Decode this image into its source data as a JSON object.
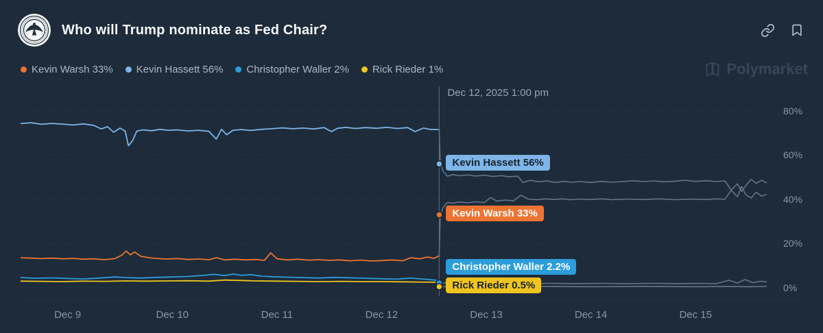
{
  "header": {
    "title": "Who will Trump nominate as Fed Chair?"
  },
  "icons": {
    "link": "copy-link",
    "bookmark": "bookmark",
    "logo": "federal-reserve-seal",
    "watermark_logo": "polymarket-mark"
  },
  "watermark": {
    "text": "Polymarket"
  },
  "chart_data": {
    "type": "line",
    "title": "Who will Trump nominate as Fed Chair?",
    "x_domain": [
      8.55,
      15.68
    ],
    "y_domain": [
      -3.1,
      89.2
    ],
    "grid": true,
    "legend_position": "top-left",
    "after_color": "#64768A",
    "x_ticks": [
      {
        "v": 9,
        "label": "Dec 9"
      },
      {
        "v": 10,
        "label": "Dec 10"
      },
      {
        "v": 11,
        "label": "Dec 11"
      },
      {
        "v": 12,
        "label": "Dec 12"
      },
      {
        "v": 13,
        "label": "Dec 13"
      },
      {
        "v": 14,
        "label": "Dec 14"
      },
      {
        "v": 15,
        "label": "Dec 15"
      }
    ],
    "y_ticks": [
      {
        "v": 0,
        "label": "0%"
      },
      {
        "v": 20,
        "label": "20%"
      },
      {
        "v": 40,
        "label": "40%"
      },
      {
        "v": 60,
        "label": "60%"
      },
      {
        "v": 80,
        "label": "80%"
      }
    ],
    "hover": {
      "x": 12.55,
      "label": "Dec 12, 2025 1:00 pm"
    },
    "series": [
      {
        "name": "Kevin Warsh",
        "legend_label": "Kevin Warsh 33%",
        "hover_label": "Kevin Warsh 33%",
        "hover_value": 33,
        "color": "#ED7332",
        "badge_bg": "#ED7332",
        "badge_text": "#FFFFFF",
        "before": [
          [
            8.55,
            13.6
          ],
          [
            8.65,
            13.4
          ],
          [
            8.75,
            13.2
          ],
          [
            8.85,
            13.4
          ],
          [
            8.95,
            13.1
          ],
          [
            9.05,
            13.3
          ],
          [
            9.15,
            12.9
          ],
          [
            9.25,
            13.1
          ],
          [
            9.35,
            12.7
          ],
          [
            9.45,
            13.2
          ],
          [
            9.52,
            14.8
          ],
          [
            9.56,
            16.6
          ],
          [
            9.6,
            14.9
          ],
          [
            9.64,
            16.2
          ],
          [
            9.7,
            14.2
          ],
          [
            9.78,
            13.6
          ],
          [
            9.86,
            13.2
          ],
          [
            9.95,
            13.0
          ],
          [
            10.05,
            13.2
          ],
          [
            10.15,
            12.8
          ],
          [
            10.25,
            13.0
          ],
          [
            10.35,
            12.7
          ],
          [
            10.42,
            13.6
          ],
          [
            10.5,
            12.6
          ],
          [
            10.6,
            12.9
          ],
          [
            10.7,
            12.6
          ],
          [
            10.8,
            12.8
          ],
          [
            10.88,
            12.4
          ],
          [
            10.94,
            15.8
          ],
          [
            11.0,
            13.1
          ],
          [
            11.1,
            12.6
          ],
          [
            11.2,
            12.9
          ],
          [
            11.3,
            12.5
          ],
          [
            11.4,
            12.7
          ],
          [
            11.5,
            12.4
          ],
          [
            11.6,
            12.6
          ],
          [
            11.7,
            12.2
          ],
          [
            11.8,
            12.5
          ],
          [
            11.9,
            12.1
          ],
          [
            12.0,
            12.3
          ],
          [
            12.1,
            12.6
          ],
          [
            12.2,
            12.2
          ],
          [
            12.28,
            13.6
          ],
          [
            12.36,
            13.1
          ],
          [
            12.44,
            13.9
          ],
          [
            12.5,
            13.3
          ],
          [
            12.55,
            14.5
          ]
        ],
        "after": [
          [
            12.55,
            14.5
          ],
          [
            12.56,
            33.0
          ],
          [
            12.59,
            36.5
          ],
          [
            12.63,
            38.6
          ],
          [
            12.68,
            38.2
          ],
          [
            12.74,
            38.8
          ],
          [
            12.82,
            38.4
          ],
          [
            12.9,
            38.9
          ],
          [
            12.98,
            38.5
          ],
          [
            13.04,
            40.8
          ],
          [
            13.1,
            39.2
          ],
          [
            13.18,
            39.6
          ],
          [
            13.26,
            39.3
          ],
          [
            13.33,
            41.8
          ],
          [
            13.4,
            40.1
          ],
          [
            13.48,
            39.8
          ],
          [
            13.56,
            40.2
          ],
          [
            13.64,
            39.9
          ],
          [
            13.72,
            40.2
          ],
          [
            13.8,
            39.8
          ],
          [
            13.9,
            40.1
          ],
          [
            14.0,
            39.9
          ],
          [
            14.1,
            40.2
          ],
          [
            14.2,
            39.8
          ],
          [
            14.35,
            40.1
          ],
          [
            14.5,
            39.9
          ],
          [
            14.65,
            40.2
          ],
          [
            14.8,
            39.8
          ],
          [
            14.95,
            40.1
          ],
          [
            15.1,
            39.9
          ],
          [
            15.2,
            40.2
          ],
          [
            15.28,
            40.0
          ],
          [
            15.34,
            44.0
          ],
          [
            15.4,
            41.2
          ],
          [
            15.44,
            45.8
          ],
          [
            15.48,
            42.0
          ],
          [
            15.53,
            40.6
          ],
          [
            15.58,
            43.2
          ],
          [
            15.63,
            41.4
          ],
          [
            15.68,
            42.2
          ]
        ]
      },
      {
        "name": "Kevin Hassett",
        "legend_label": "Kevin Hassett 56%",
        "hover_label": "Kevin Hassett 56%",
        "hover_value": 56,
        "color": "#7FB5E8",
        "badge_bg": "#7FB5E8",
        "badge_text": "#17242F",
        "before": [
          [
            8.55,
            74.2
          ],
          [
            8.65,
            74.6
          ],
          [
            8.75,
            73.9
          ],
          [
            8.85,
            74.3
          ],
          [
            8.95,
            74.0
          ],
          [
            9.05,
            73.6
          ],
          [
            9.15,
            74.1
          ],
          [
            9.25,
            73.4
          ],
          [
            9.32,
            71.8
          ],
          [
            9.38,
            72.8
          ],
          [
            9.44,
            70.3
          ],
          [
            9.5,
            72.2
          ],
          [
            9.55,
            70.8
          ],
          [
            9.58,
            64.2
          ],
          [
            9.62,
            66.5
          ],
          [
            9.66,
            70.8
          ],
          [
            9.72,
            71.4
          ],
          [
            9.8,
            71.0
          ],
          [
            9.88,
            71.6
          ],
          [
            9.96,
            71.2
          ],
          [
            10.05,
            71.4
          ],
          [
            10.15,
            70.9
          ],
          [
            10.25,
            71.2
          ],
          [
            10.35,
            70.7
          ],
          [
            10.42,
            67.2
          ],
          [
            10.47,
            71.6
          ],
          [
            10.52,
            69.2
          ],
          [
            10.58,
            71.2
          ],
          [
            10.66,
            71.5
          ],
          [
            10.75,
            71.1
          ],
          [
            10.85,
            71.6
          ],
          [
            10.95,
            71.9
          ],
          [
            11.05,
            72.3
          ],
          [
            11.15,
            71.9
          ],
          [
            11.25,
            72.2
          ],
          [
            11.35,
            71.8
          ],
          [
            11.45,
            72.4
          ],
          [
            11.52,
            70.6
          ],
          [
            11.58,
            72.1
          ],
          [
            11.66,
            72.5
          ],
          [
            11.75,
            72.0
          ],
          [
            11.85,
            72.4
          ],
          [
            11.95,
            72.1
          ],
          [
            12.05,
            72.5
          ],
          [
            12.15,
            72.0
          ],
          [
            12.25,
            72.4
          ],
          [
            12.32,
            70.6
          ],
          [
            12.4,
            72.2
          ],
          [
            12.46,
            71.6
          ],
          [
            12.55,
            71.5
          ]
        ],
        "after": [
          [
            12.55,
            71.5
          ],
          [
            12.56,
            56.0
          ],
          [
            12.59,
            52.5
          ],
          [
            12.63,
            50.4
          ],
          [
            12.68,
            51.2
          ],
          [
            12.74,
            50.6
          ],
          [
            12.82,
            51.0
          ],
          [
            12.9,
            50.5
          ],
          [
            12.98,
            50.9
          ],
          [
            13.06,
            50.3
          ],
          [
            13.14,
            50.7
          ],
          [
            13.22,
            50.2
          ],
          [
            13.3,
            50.5
          ],
          [
            13.35,
            47.6
          ],
          [
            13.42,
            48.6
          ],
          [
            13.5,
            47.9
          ],
          [
            13.58,
            48.3
          ],
          [
            13.66,
            47.6
          ],
          [
            13.74,
            48.1
          ],
          [
            13.82,
            47.7
          ],
          [
            13.9,
            48.0
          ],
          [
            14.0,
            47.6
          ],
          [
            14.1,
            48.1
          ],
          [
            14.2,
            47.7
          ],
          [
            14.3,
            48.0
          ],
          [
            14.4,
            48.4
          ],
          [
            14.5,
            48.0
          ],
          [
            14.6,
            48.3
          ],
          [
            14.7,
            47.9
          ],
          [
            14.8,
            48.2
          ],
          [
            14.9,
            48.6
          ],
          [
            15.0,
            48.1
          ],
          [
            15.1,
            48.4
          ],
          [
            15.2,
            48.0
          ],
          [
            15.28,
            48.3
          ],
          [
            15.34,
            44.2
          ],
          [
            15.4,
            47.0
          ],
          [
            15.44,
            43.6
          ],
          [
            15.48,
            46.2
          ],
          [
            15.53,
            49.0
          ],
          [
            15.58,
            47.2
          ],
          [
            15.63,
            48.6
          ],
          [
            15.68,
            47.4
          ]
        ]
      },
      {
        "name": "Christopher Waller",
        "legend_label": "Christopher Waller 2%",
        "hover_label": "Christopher Waller 2.2%",
        "hover_value": 2.2,
        "color": "#2D9CDB",
        "badge_bg": "#2D9CDB",
        "badge_text": "#FFFFFF",
        "before": [
          [
            8.55,
            4.6
          ],
          [
            8.7,
            4.3
          ],
          [
            8.85,
            4.5
          ],
          [
            9.0,
            4.2
          ],
          [
            9.15,
            4.0
          ],
          [
            9.3,
            4.4
          ],
          [
            9.45,
            4.9
          ],
          [
            9.55,
            4.6
          ],
          [
            9.7,
            4.4
          ],
          [
            9.85,
            4.7
          ],
          [
            10.0,
            4.9
          ],
          [
            10.15,
            5.1
          ],
          [
            10.3,
            5.6
          ],
          [
            10.4,
            6.1
          ],
          [
            10.5,
            5.5
          ],
          [
            10.58,
            6.2
          ],
          [
            10.66,
            5.6
          ],
          [
            10.75,
            5.9
          ],
          [
            10.85,
            5.3
          ],
          [
            10.95,
            5.0
          ],
          [
            11.1,
            4.8
          ],
          [
            11.25,
            4.6
          ],
          [
            11.4,
            4.4
          ],
          [
            11.55,
            4.7
          ],
          [
            11.7,
            4.5
          ],
          [
            11.85,
            4.3
          ],
          [
            12.0,
            4.1
          ],
          [
            12.15,
            3.9
          ],
          [
            12.28,
            4.4
          ],
          [
            12.4,
            3.9
          ],
          [
            12.5,
            3.5
          ],
          [
            12.55,
            3.2
          ]
        ],
        "after": [
          [
            12.55,
            3.2
          ],
          [
            12.56,
            2.2
          ],
          [
            12.7,
            2.1
          ],
          [
            12.9,
            2.0
          ],
          [
            13.1,
            2.1
          ],
          [
            13.35,
            1.9
          ],
          [
            13.6,
            2.0
          ],
          [
            13.85,
            1.9
          ],
          [
            14.1,
            2.0
          ],
          [
            14.35,
            1.9
          ],
          [
            14.6,
            2.0
          ],
          [
            14.85,
            1.9
          ],
          [
            15.05,
            2.0
          ],
          [
            15.2,
            1.9
          ],
          [
            15.32,
            3.4
          ],
          [
            15.4,
            2.1
          ],
          [
            15.47,
            3.7
          ],
          [
            15.55,
            2.3
          ],
          [
            15.62,
            3.0
          ],
          [
            15.68,
            2.6
          ]
        ]
      },
      {
        "name": "Rick Rieder",
        "legend_label": "Rick Rieder 1%",
        "hover_label": "Rick Rieder 0.5%",
        "hover_value": 0.5,
        "color": "#F0C420",
        "badge_bg": "#F0C420",
        "badge_text": "#17242F",
        "before": [
          [
            8.55,
            3.0
          ],
          [
            8.75,
            2.9
          ],
          [
            8.95,
            2.8
          ],
          [
            9.15,
            3.0
          ],
          [
            9.35,
            2.9
          ],
          [
            9.55,
            3.1
          ],
          [
            9.75,
            3.0
          ],
          [
            9.95,
            3.1
          ],
          [
            10.15,
            3.2
          ],
          [
            10.35,
            3.0
          ],
          [
            10.5,
            3.5
          ],
          [
            10.65,
            3.3
          ],
          [
            10.8,
            3.1
          ],
          [
            11.0,
            3.0
          ],
          [
            11.2,
            2.9
          ],
          [
            11.4,
            2.8
          ],
          [
            11.6,
            2.9
          ],
          [
            11.8,
            2.8
          ],
          [
            12.0,
            2.8
          ],
          [
            12.2,
            2.7
          ],
          [
            12.35,
            2.6
          ],
          [
            12.5,
            2.5
          ],
          [
            12.55,
            2.4
          ]
        ],
        "after": [
          [
            12.55,
            2.4
          ],
          [
            12.56,
            0.5
          ],
          [
            12.8,
            0.6
          ],
          [
            13.1,
            0.5
          ],
          [
            13.5,
            0.6
          ],
          [
            14.0,
            0.5
          ],
          [
            14.5,
            0.6
          ],
          [
            15.0,
            0.5
          ],
          [
            15.3,
            0.6
          ],
          [
            15.5,
            0.5
          ],
          [
            15.68,
            0.6
          ]
        ]
      }
    ]
  }
}
